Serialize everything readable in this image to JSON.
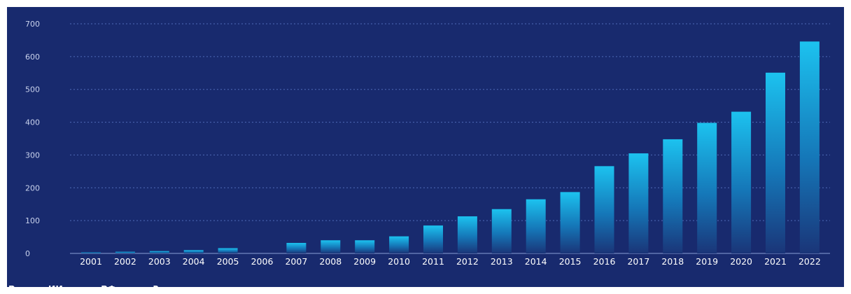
{
  "chart_data": {
    "type": "bar",
    "categories": [
      "2001",
      "2002",
      "2003",
      "2004",
      "2005",
      "2006",
      "2007",
      "2008",
      "2009",
      "2010",
      "2011",
      "2012",
      "2013",
      "2014",
      "2015",
      "2016",
      "2017",
      "2018",
      "2019",
      "2020",
      "2021",
      "2022"
    ],
    "values": [
      3,
      5,
      7,
      10,
      16,
      0,
      32,
      40,
      40,
      52,
      85,
      113,
      135,
      165,
      187,
      266,
      305,
      348,
      398,
      432,
      551,
      646
    ],
    "yticks": [
      "0",
      "100",
      "200",
      "300",
      "400",
      "500",
      "600",
      "700"
    ],
    "ylim": [
      0,
      700
    ],
    "grid": true,
    "caption": "Размер ИИ рынка РФ, млрд ₽",
    "colors": {
      "background": "#182a6e",
      "bar_top": "#1cc2ef",
      "bar_bottom": "#1a3578",
      "grid": "#4f6ab8",
      "baseline": "#8aa0d6"
    }
  }
}
